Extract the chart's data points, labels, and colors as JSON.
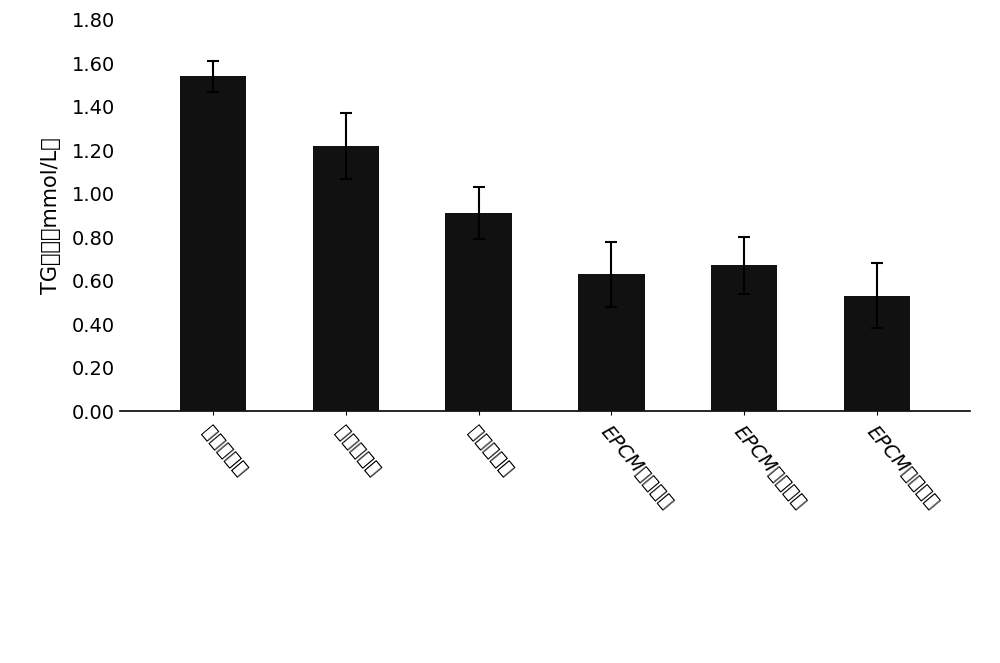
{
  "categories": [
    "正常对照组",
    "高脂模型组",
    "阳性对照组",
    "EPCM低剂量组",
    "EPCM中剂量组",
    "EPCM高剂量组"
  ],
  "values": [
    1.54,
    1.22,
    0.91,
    0.63,
    0.67,
    0.53
  ],
  "errors": [
    0.07,
    0.15,
    0.12,
    0.15,
    0.13,
    0.15
  ],
  "bar_color": "#111111",
  "ylabel": "TG含量（mmol/L）",
  "ylim": [
    0.0,
    1.8
  ],
  "yticks": [
    0.0,
    0.2,
    0.4,
    0.6,
    0.8,
    1.0,
    1.2,
    1.4,
    1.6,
    1.8
  ],
  "background_color": "#ffffff",
  "bar_width": 0.5,
  "capsize": 4,
  "tick_fontsize": 14,
  "label_fontsize": 15,
  "xtick_rotation": -50
}
